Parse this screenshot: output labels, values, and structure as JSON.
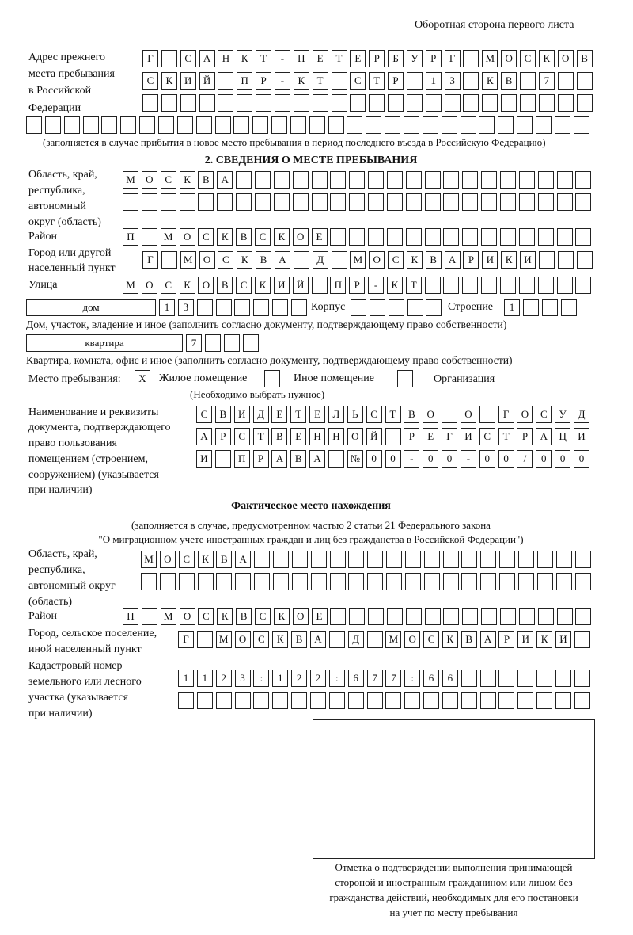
{
  "header": {
    "side_note": "Оборотная сторона первого листа"
  },
  "prev_address": {
    "label": [
      "Адрес прежнего",
      "места пребывания",
      "в Российской",
      "Федерации"
    ],
    "rows": [
      [
        "Г",
        "",
        "С",
        "А",
        "Н",
        "К",
        "Т",
        "-",
        "П",
        "Е",
        "Т",
        "Е",
        "Р",
        "Б",
        "У",
        "Р",
        "Г",
        "",
        "М",
        "О",
        "С",
        "К",
        "О",
        "В"
      ],
      [
        "С",
        "К",
        "И",
        "Й",
        "",
        "П",
        "Р",
        "-",
        "К",
        "Т",
        "",
        "С",
        "Т",
        "Р",
        "",
        "1",
        "3",
        "",
        "К",
        "В",
        "",
        "7",
        "",
        ""
      ],
      [
        "",
        "",
        "",
        "",
        "",
        "",
        "",
        "",
        "",
        "",
        "",
        "",
        "",
        "",
        "",
        "",
        "",
        "",
        "",
        "",
        "",
        "",
        "",
        ""
      ],
      [
        "",
        "",
        "",
        "",
        "",
        "",
        "",
        "",
        "",
        "",
        "",
        "",
        "",
        "",
        "",
        "",
        "",
        "",
        "",
        "",
        "",
        "",
        "",
        "",
        "",
        "",
        "",
        "",
        "",
        ""
      ]
    ],
    "caption": "(заполняется в случае прибытия в новое место пребывания в период последнего въезда в Российскую Федерацию)"
  },
  "stay": {
    "heading": "2. СВЕДЕНИЯ О МЕСТЕ ПРЕБЫВАНИЯ",
    "region_label": [
      "Область, край,",
      "республика,",
      "автономный",
      "округ (область)"
    ],
    "region_rows": [
      [
        "М",
        "О",
        "С",
        "К",
        "В",
        "А",
        "",
        "",
        "",
        "",
        "",
        "",
        "",
        "",
        "",
        "",
        "",
        "",
        "",
        "",
        "",
        "",
        "",
        "",
        ""
      ],
      [
        "",
        "",
        "",
        "",
        "",
        "",
        "",
        "",
        "",
        "",
        "",
        "",
        "",
        "",
        "",
        "",
        "",
        "",
        "",
        "",
        "",
        "",
        "",
        "",
        ""
      ]
    ],
    "district_label": "Район",
    "district_row": [
      "П",
      "",
      "М",
      "О",
      "С",
      "К",
      "В",
      "С",
      "К",
      "О",
      "Е",
      "",
      "",
      "",
      "",
      "",
      "",
      "",
      "",
      "",
      "",
      "",
      "",
      "",
      ""
    ],
    "city_label": [
      "Город или другой",
      "населенный пункт"
    ],
    "city_row": [
      "Г",
      "",
      "М",
      "О",
      "С",
      "К",
      "В",
      "А",
      "",
      "Д",
      "",
      "М",
      "О",
      "С",
      "К",
      "В",
      "А",
      "Р",
      "И",
      "К",
      "И",
      "",
      "",
      ""
    ],
    "street_label": "Улица",
    "street_row": [
      "М",
      "О",
      "С",
      "К",
      "О",
      "В",
      "С",
      "К",
      "И",
      "Й",
      "",
      "П",
      "Р",
      "-",
      "К",
      "Т",
      "",
      "",
      "",
      "",
      "",
      "",
      "",
      "",
      ""
    ],
    "house_type": "дом",
    "house_cells": [
      "1",
      "3",
      "",
      "",
      "",
      "",
      "",
      ""
    ],
    "korpus_label": "Корпус",
    "korpus_cells": [
      "",
      "",
      "",
      "",
      ""
    ],
    "building_label": "Строение",
    "building_cells": [
      "1",
      "",
      "",
      ""
    ],
    "house_caption": "Дом, участок, владение и иное (заполнить согласно документу, подтверждающему право собственности)",
    "flat_type": "квартира",
    "flat_cells": [
      "7",
      "",
      "",
      ""
    ],
    "flat_caption": "Квартира, комната, офис и иное (заполнить согласно документу, подтверждающему право собственности)",
    "place_label": "Место пребывания:",
    "options": [
      {
        "label": "Жилое помещение",
        "mark": "X"
      },
      {
        "label": "Иное помещение",
        "mark": ""
      },
      {
        "label": "Организация",
        "mark": ""
      }
    ],
    "choose_note": "(Необходимо выбрать нужное)",
    "doc_label": [
      "Наименование и реквизиты",
      "документа, подтверждающего",
      "право пользования",
      "помещением (строением,",
      "сооружением) (указывается",
      "при наличии)"
    ],
    "doc_rows": [
      [
        "С",
        "В",
        "И",
        "Д",
        "Е",
        "Т",
        "Е",
        "Л",
        "Ь",
        "С",
        "Т",
        "В",
        "О",
        "",
        "О",
        "",
        "Г",
        "О",
        "С",
        "У",
        "Д"
      ],
      [
        "А",
        "Р",
        "С",
        "Т",
        "В",
        "Е",
        "Н",
        "Н",
        "О",
        "Й",
        "",
        "Р",
        "Е",
        "Г",
        "И",
        "С",
        "Т",
        "Р",
        "А",
        "Ц",
        "И"
      ],
      [
        "И",
        "",
        "П",
        "Р",
        "А",
        "В",
        "А",
        "",
        "№",
        "0",
        "0",
        "-",
        "0",
        "0",
        "-",
        "0",
        "0",
        "/",
        "0",
        "0",
        "0"
      ]
    ]
  },
  "actual": {
    "heading": "Фактическое место нахождения",
    "note": [
      "(заполняется в случае, предусмотренном частью 2 статьи 21 Федерального закона",
      "\"О миграционном учете иностранных граждан и лиц без гражданства в Российской Федерации\")"
    ],
    "region_label": [
      "Область, край,",
      "республика,",
      "автономный округ",
      "(область)"
    ],
    "region_rows": [
      [
        "М",
        "О",
        "С",
        "К",
        "В",
        "А",
        "",
        "",
        "",
        "",
        "",
        "",
        "",
        "",
        "",
        "",
        "",
        "",
        "",
        "",
        "",
        "",
        "",
        ""
      ],
      [
        "",
        "",
        "",
        "",
        "",
        "",
        "",
        "",
        "",
        "",
        "",
        "",
        "",
        "",
        "",
        "",
        "",
        "",
        "",
        "",
        "",
        "",
        "",
        ""
      ]
    ],
    "district_label": "Район",
    "district_row": [
      "П",
      "",
      "М",
      "О",
      "С",
      "К",
      "В",
      "С",
      "К",
      "О",
      "Е",
      "",
      "",
      "",
      "",
      "",
      "",
      "",
      "",
      "",
      "",
      "",
      "",
      "",
      ""
    ],
    "city_label": [
      "Город, сельское поселение,",
      "иной населенный пункт"
    ],
    "city_row": [
      "Г",
      "",
      "М",
      "О",
      "С",
      "К",
      "В",
      "А",
      "",
      "Д",
      "",
      "М",
      "О",
      "С",
      "К",
      "В",
      "А",
      "Р",
      "И",
      "К",
      "И",
      ""
    ],
    "cadastre_label": [
      "Кадастровый номер",
      "земельного или лесного",
      "участка (указывается",
      "при наличии)"
    ],
    "cadastre_rows": [
      [
        "1",
        "1",
        "2",
        "3",
        ":",
        "1",
        "2",
        "2",
        ":",
        "6",
        "7",
        "7",
        ":",
        "6",
        "6",
        "",
        "",
        "",
        "",
        "",
        "",
        ""
      ],
      [
        "",
        "",
        "",
        "",
        "",
        "",
        "",
        "",
        "",
        "",
        "",
        "",
        "",
        "",
        "",
        "",
        "",
        "",
        "",
        "",
        "",
        ""
      ]
    ]
  },
  "stamp": {
    "caption": [
      "Отметка о подтверждении выполнения принимающей",
      "стороной и иностранным гражданином или лицом без",
      "гражданства действий, необходимых для его постановки",
      "на учет по месту пребывания"
    ]
  }
}
